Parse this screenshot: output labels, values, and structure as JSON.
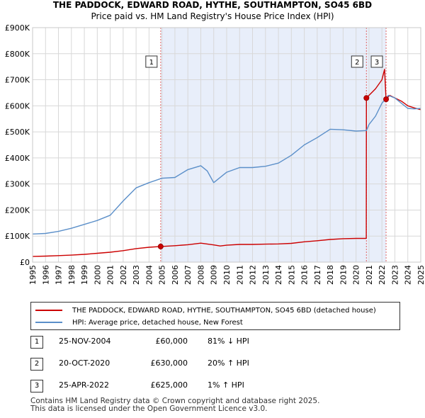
{
  "chart_data": {
    "type": "line",
    "title": "THE PADDOCK, EDWARD ROAD, HYTHE, SOUTHAMPTON, SO45 6BD",
    "subtitle": "Price paid vs. HM Land Registry's House Price Index (HPI)",
    "x_ticks": [
      "1995",
      "1996",
      "1997",
      "1998",
      "1999",
      "2000",
      "2001",
      "2002",
      "2003",
      "2004",
      "2005",
      "2006",
      "2007",
      "2008",
      "2009",
      "2010",
      "2011",
      "2012",
      "2013",
      "2014",
      "2015",
      "2016",
      "2017",
      "2018",
      "2019",
      "2020",
      "2021",
      "2022",
      "2023",
      "2024",
      "2025"
    ],
    "y_ticks": [
      "£0",
      "£100K",
      "£200K",
      "£300K",
      "£400K",
      "£500K",
      "£600K",
      "£700K",
      "£800K",
      "£900K"
    ],
    "xlim": [
      1995,
      2025
    ],
    "ylim": [
      0,
      900000
    ],
    "shaded_region": {
      "from": 2004.9,
      "to": 2022.32
    },
    "series": [
      {
        "name": "THE PADDOCK, EDWARD ROAD, HYTHE, SOUTHAMPTON, SO45 6BD (detached house)",
        "color": "#cc0000",
        "x": [
          1995,
          1996,
          1997,
          1998,
          1999,
          2000,
          2001,
          2002,
          2003,
          2004,
          2004.9,
          2006,
          2007,
          2008,
          2009,
          2009.5,
          2010,
          2011,
          2012,
          2013,
          2014,
          2015,
          2016,
          2017,
          2018,
          2019,
          2020,
          2020.79,
          2020.8,
          2021,
          2021.5,
          2022,
          2022.2,
          2022.32,
          2022.6,
          2023,
          2023.5,
          2024,
          2024.5,
          2025
        ],
        "values": [
          22000,
          23000,
          25000,
          27000,
          30000,
          34000,
          38000,
          44000,
          52000,
          57000,
          60000,
          63000,
          67000,
          73000,
          66000,
          62000,
          65000,
          68000,
          68000,
          69000,
          70000,
          72000,
          78000,
          82000,
          87000,
          90000,
          91000,
          91000,
          630000,
          640000,
          665000,
          700000,
          740000,
          625000,
          640000,
          630000,
          618000,
          600000,
          592000,
          585000
        ]
      },
      {
        "name": "HPI: Average price, detached house, New Forest",
        "color": "#5b8fc9",
        "x": [
          1995,
          1996,
          1997,
          1998,
          1999,
          2000,
          2001,
          2002,
          2003,
          2004,
          2005,
          2006,
          2007,
          2008,
          2008.5,
          2009,
          2010,
          2011,
          2012,
          2013,
          2014,
          2015,
          2016,
          2017,
          2018,
          2019,
          2020,
          2020.8,
          2021,
          2021.5,
          2022,
          2022.5,
          2023,
          2023.5,
          2024,
          2024.5,
          2025
        ],
        "values": [
          108000,
          110000,
          118000,
          130000,
          145000,
          160000,
          180000,
          235000,
          285000,
          305000,
          322000,
          325000,
          355000,
          370000,
          350000,
          305000,
          345000,
          363000,
          363000,
          368000,
          380000,
          410000,
          450000,
          478000,
          510000,
          508000,
          503000,
          505000,
          528000,
          560000,
          610000,
          640000,
          630000,
          610000,
          590000,
          588000,
          590000
        ]
      }
    ],
    "transactions": [
      {
        "num": "1",
        "date": "25-NOV-2004",
        "price": "£60,000",
        "hpi": "81% ↓ HPI",
        "x": 2004.9,
        "y": 60000
      },
      {
        "num": "2",
        "date": "20-OCT-2020",
        "price": "£630,000",
        "hpi": "20% ↑ HPI",
        "x": 2020.8,
        "y": 630000
      },
      {
        "num": "3",
        "date": "25-APR-2022",
        "price": "£625,000",
        "hpi": "1% ↑ HPI",
        "x": 2022.32,
        "y": 625000
      }
    ]
  },
  "footer": {
    "line1": "Contains HM Land Registry data © Crown copyright and database right 2025.",
    "line2": "This data is licensed under the Open Government Licence v3.0."
  }
}
